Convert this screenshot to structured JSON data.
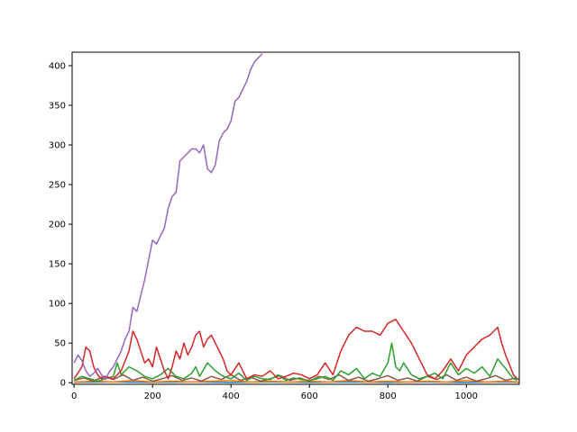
{
  "chart_data": {
    "type": "line",
    "title": "",
    "xlabel": "",
    "ylabel": "",
    "xlim": [
      -5,
      1135
    ],
    "ylim": [
      -2,
      417
    ],
    "grid": false,
    "legend": "none",
    "x_ticks": [
      0,
      200,
      400,
      600,
      800,
      1000
    ],
    "y_ticks": [
      0,
      50,
      100,
      150,
      200,
      250,
      300,
      350,
      400
    ],
    "x_tick_labels": [
      "0",
      "200",
      "400",
      "600",
      "800",
      "1000"
    ],
    "y_tick_labels": [
      "0",
      "50",
      "100",
      "150",
      "200",
      "250",
      "300",
      "350",
      "400"
    ],
    "series": [
      {
        "color": "#9467bd",
        "x": [
          0,
          10,
          20,
          30,
          40,
          50,
          60,
          70,
          80,
          90,
          100,
          110,
          120,
          130,
          140,
          150,
          160,
          170,
          180,
          190,
          200,
          210,
          220,
          230,
          240,
          250,
          260,
          270,
          280,
          290,
          300,
          310,
          320,
          330,
          340,
          350,
          360,
          370,
          380,
          390,
          400,
          410,
          420,
          430,
          440,
          450,
          460,
          470,
          480
        ],
        "y": [
          25,
          35,
          28,
          15,
          8,
          12,
          18,
          10,
          4,
          14,
          20,
          30,
          40,
          55,
          65,
          95,
          90,
          110,
          130,
          155,
          180,
          175,
          185,
          195,
          220,
          235,
          240,
          280,
          285,
          290,
          295,
          295,
          290,
          300,
          270,
          265,
          275,
          305,
          315,
          320,
          330,
          355,
          360,
          370,
          380,
          395,
          405,
          410,
          415
        ]
      },
      {
        "color": "#d62728",
        "x": [
          0,
          20,
          30,
          40,
          50,
          60,
          70,
          80,
          100,
          120,
          140,
          150,
          160,
          170,
          180,
          190,
          200,
          210,
          220,
          230,
          240,
          250,
          260,
          270,
          280,
          290,
          300,
          310,
          320,
          330,
          340,
          350,
          360,
          370,
          380,
          390,
          400,
          420,
          440,
          460,
          480,
          500,
          520,
          540,
          560,
          580,
          600,
          620,
          640,
          660,
          680,
          700,
          720,
          740,
          760,
          780,
          800,
          820,
          840,
          860,
          880,
          900,
          920,
          940,
          960,
          980,
          1000,
          1020,
          1040,
          1060,
          1080,
          1090,
          1100,
          1120,
          1130
        ],
        "y": [
          5,
          20,
          45,
          40,
          20,
          10,
          5,
          8,
          5,
          15,
          40,
          65,
          55,
          40,
          25,
          30,
          20,
          45,
          30,
          15,
          5,
          20,
          40,
          30,
          50,
          35,
          45,
          60,
          65,
          45,
          55,
          60,
          50,
          40,
          30,
          15,
          10,
          25,
          5,
          10,
          8,
          15,
          5,
          8,
          12,
          10,
          5,
          10,
          25,
          10,
          40,
          60,
          70,
          65,
          65,
          60,
          75,
          80,
          65,
          50,
          30,
          10,
          5,
          15,
          30,
          15,
          35,
          45,
          55,
          60,
          70,
          50,
          35,
          10,
          5
        ]
      },
      {
        "color": "#2ca02c",
        "x": [
          0,
          20,
          40,
          60,
          80,
          100,
          110,
          120,
          140,
          160,
          180,
          200,
          220,
          240,
          260,
          280,
          300,
          310,
          320,
          340,
          360,
          380,
          400,
          420,
          440,
          460,
          480,
          500,
          520,
          540,
          560,
          580,
          600,
          620,
          640,
          660,
          680,
          700,
          720,
          740,
          760,
          780,
          800,
          810,
          820,
          830,
          840,
          860,
          880,
          900,
          920,
          940,
          960,
          980,
          1000,
          1020,
          1040,
          1060,
          1080,
          1100,
          1120,
          1130
        ],
        "y": [
          3,
          8,
          5,
          2,
          5,
          8,
          25,
          10,
          20,
          15,
          8,
          5,
          10,
          18,
          8,
          5,
          12,
          20,
          8,
          25,
          15,
          8,
          5,
          12,
          3,
          8,
          5,
          4,
          10,
          3,
          6,
          4,
          3,
          5,
          8,
          3,
          15,
          10,
          18,
          5,
          12,
          8,
          25,
          50,
          20,
          15,
          25,
          10,
          5,
          8,
          12,
          5,
          25,
          10,
          18,
          12,
          20,
          8,
          30,
          18,
          5,
          3
        ]
      },
      {
        "color": "#8c564b",
        "x": [
          0,
          25,
          50,
          75,
          100,
          125,
          150,
          175,
          200,
          225,
          250,
          275,
          300,
          325,
          350,
          375,
          400,
          425,
          450,
          475,
          500,
          525,
          550,
          575,
          600,
          625,
          650,
          675,
          700,
          725,
          750,
          775,
          800,
          825,
          850,
          875,
          900,
          925,
          950,
          975,
          1000,
          1025,
          1050,
          1075,
          1100,
          1125,
          1135
        ],
        "y": [
          3,
          6,
          2,
          8,
          4,
          10,
          3,
          7,
          2,
          5,
          9,
          3,
          6,
          2,
          8,
          4,
          10,
          3,
          7,
          2,
          5,
          9,
          3,
          6,
          2,
          8,
          4,
          10,
          3,
          7,
          2,
          5,
          9,
          3,
          6,
          2,
          8,
          4,
          10,
          3,
          7,
          2,
          5,
          9,
          3,
          6,
          4
        ]
      },
      {
        "color": "#ff7f0e",
        "x": [
          0,
          50,
          100,
          150,
          200,
          250,
          300,
          350,
          400,
          450,
          500,
          550,
          600,
          650,
          700,
          750,
          800,
          850,
          900,
          950,
          1000,
          1050,
          1100,
          1135
        ],
        "y": [
          1,
          2,
          1,
          3,
          1,
          2,
          1,
          2,
          3,
          1,
          2,
          1,
          2,
          1,
          3,
          1,
          2,
          1,
          2,
          1,
          3,
          1,
          2,
          1
        ]
      },
      {
        "color": "#1f77b4",
        "x": [
          0,
          100,
          200,
          300,
          400,
          500,
          600,
          700,
          800,
          900,
          1000,
          1100,
          1135
        ],
        "y": [
          0.5,
          1,
          0.5,
          1,
          0.5,
          1,
          0.5,
          1,
          0.5,
          1,
          0.5,
          1,
          0.5
        ]
      }
    ]
  }
}
